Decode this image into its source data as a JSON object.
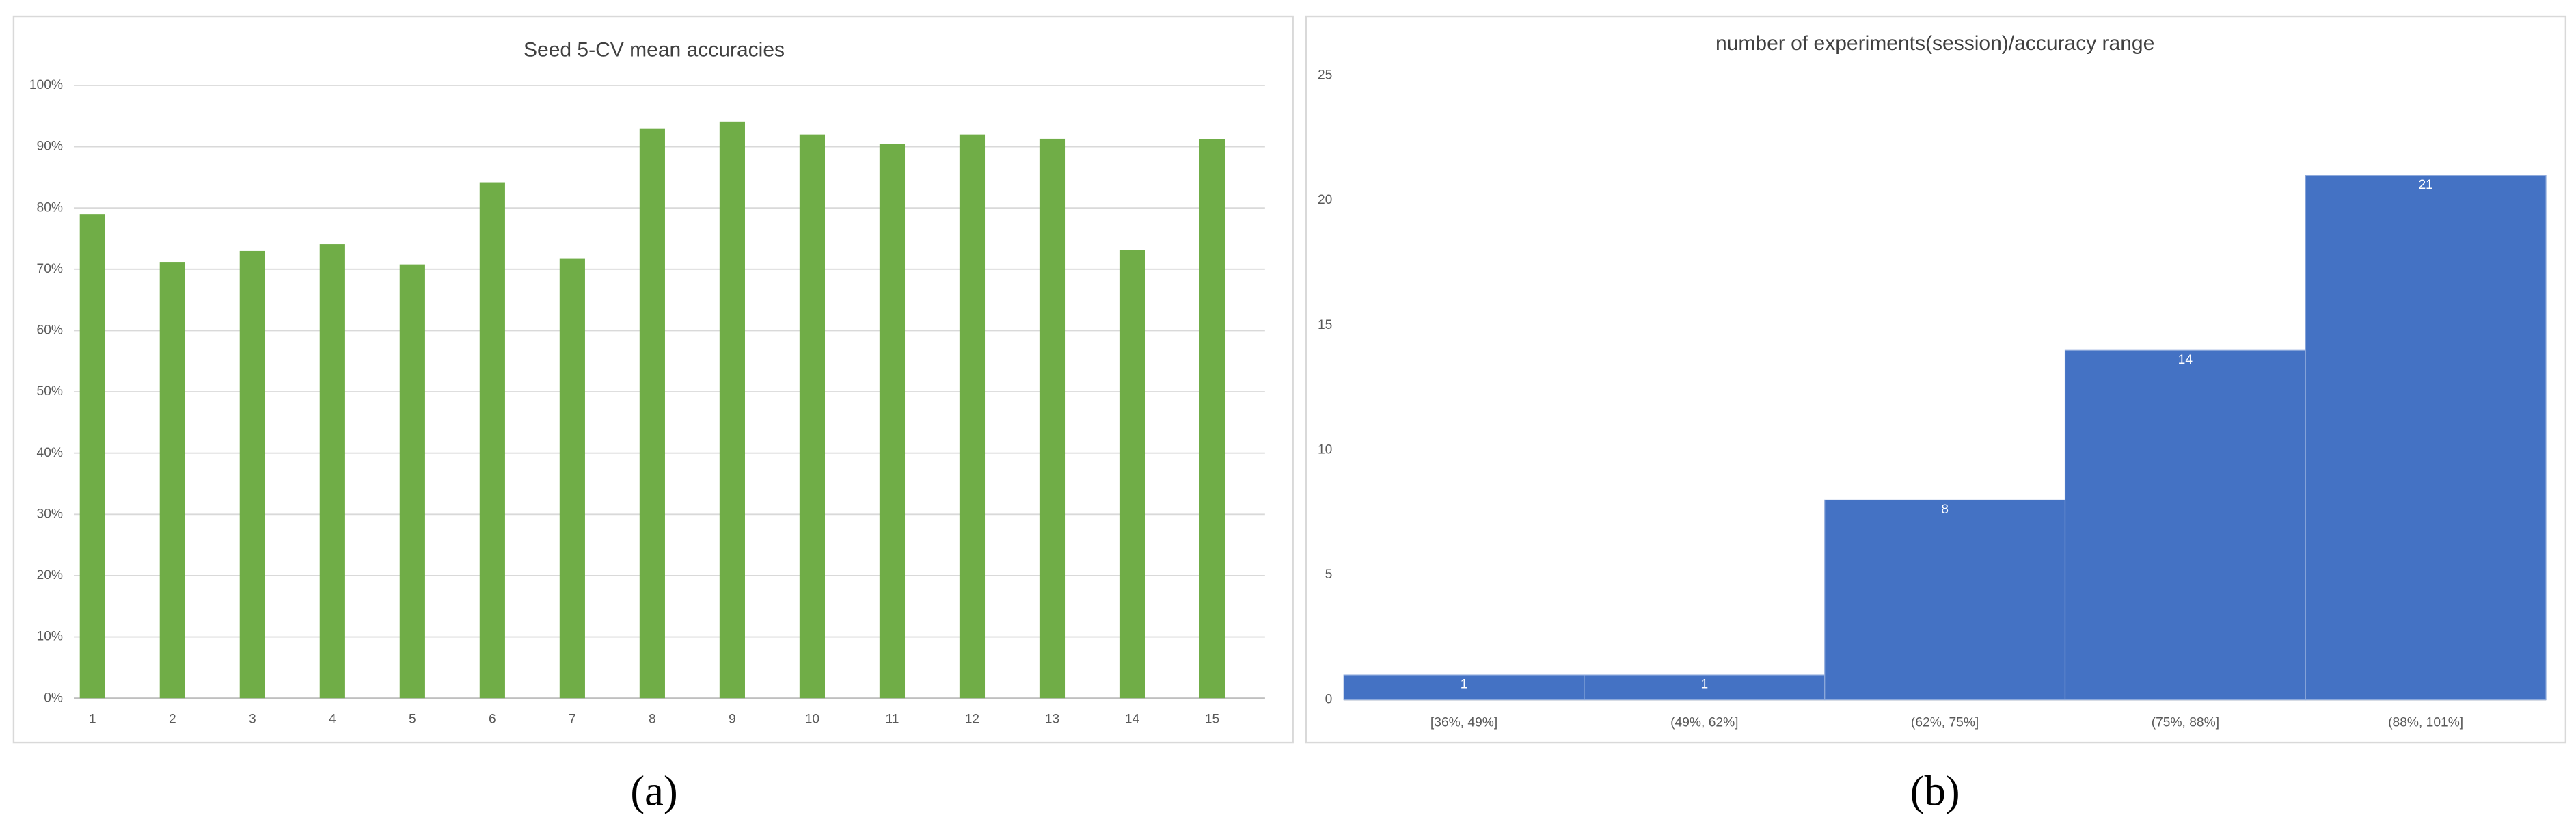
{
  "chart_data": [
    {
      "type": "bar",
      "title": "Seed 5-CV mean accuracies",
      "categories": [
        "1",
        "2",
        "3",
        "4",
        "5",
        "6",
        "7",
        "8",
        "9",
        "10",
        "11",
        "12",
        "13",
        "14",
        "15"
      ],
      "values": [
        79,
        71.2,
        73,
        74.1,
        70.8,
        84.2,
        71.7,
        93,
        94.1,
        92,
        90.5,
        92,
        91.3,
        73.2,
        91.2
      ],
      "color": "#70ad47",
      "grid": true,
      "ylim": [
        0,
        100
      ],
      "yticks": [
        {
          "value": 0,
          "label": "0%"
        },
        {
          "value": 10,
          "label": "10%"
        },
        {
          "value": 20,
          "label": "20%"
        },
        {
          "value": 30,
          "label": "30%"
        },
        {
          "value": 40,
          "label": "40%"
        },
        {
          "value": 50,
          "label": "50%"
        },
        {
          "value": 60,
          "label": "60%"
        },
        {
          "value": 70,
          "label": "70%"
        },
        {
          "value": 80,
          "label": "80%"
        },
        {
          "value": 90,
          "label": "90%"
        },
        {
          "value": 100,
          "label": "100%"
        }
      ]
    },
    {
      "type": "bar",
      "title": "number of experiments(session)/accuracy range",
      "categories": [
        "[36%, 49%]",
        "(49%, 62%]",
        "(62%, 75%]",
        "(75%, 88%]",
        "(88%, 101%]"
      ],
      "values": [
        1,
        1,
        8,
        14,
        21
      ],
      "data_labels": true,
      "color": "#4472c4",
      "grid": false,
      "ylim": [
        0,
        25
      ],
      "yticks": [
        0,
        5,
        10,
        15,
        20,
        25
      ]
    }
  ],
  "captions": [
    "(a)",
    "(b)"
  ]
}
